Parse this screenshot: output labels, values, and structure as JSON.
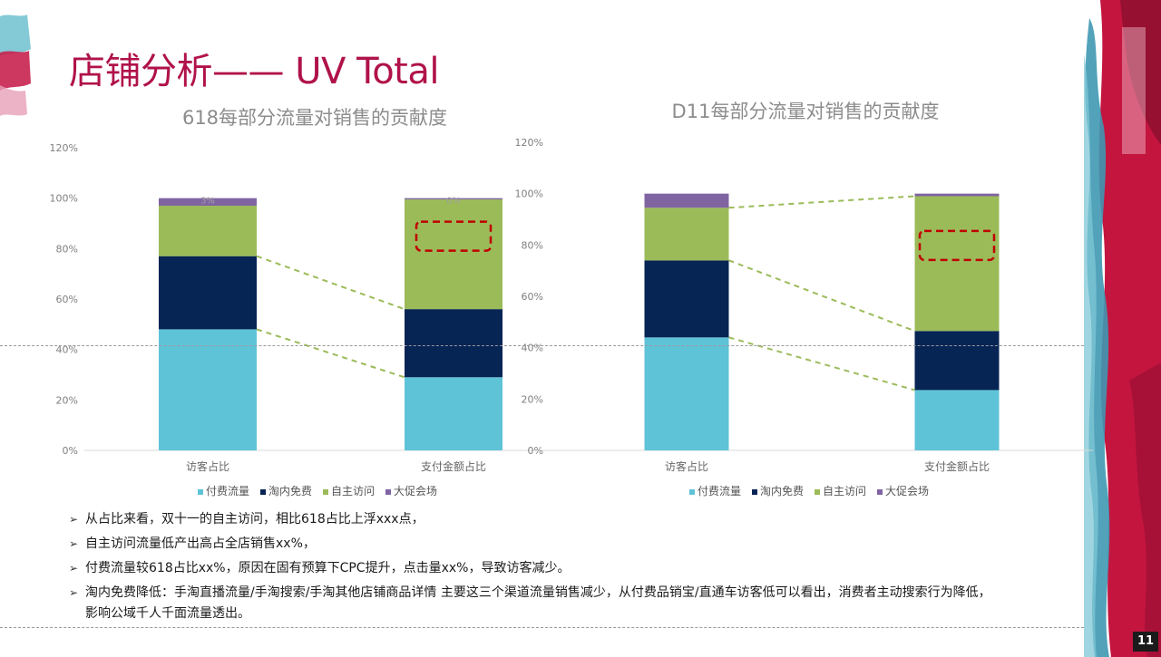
{
  "slide": {
    "title": "店铺分析—— UV Total",
    "page_number": "11"
  },
  "colors": {
    "title": "#b0124a",
    "paid": "#5fc3d8",
    "free": "#062454",
    "self": "#9bbb59",
    "promo": "#8064a2",
    "trend_line": "#9bbb59",
    "highlight": "#c00000"
  },
  "chart_data": [
    {
      "type": "bar",
      "stacked": true,
      "title": "618每部分流量对销售的贡献度",
      "categories": [
        "访客占比",
        "支付金额占比"
      ],
      "ylim": [
        0,
        1.2
      ],
      "yticks": [
        "0%",
        "20%",
        "40%",
        "60%",
        "80%",
        "100%",
        "120%"
      ],
      "series": [
        {
          "name": "付费流量",
          "values": [
            0.48,
            0.29
          ]
        },
        {
          "name": "淘内免费",
          "values": [
            0.29,
            0.27
          ]
        },
        {
          "name": "自主访问",
          "values": [
            0.2,
            0.435
          ]
        },
        {
          "name": "大促会场",
          "values": [
            0.03,
            0.005
          ]
        }
      ],
      "data_labels": [
        {
          "series": "大促会场",
          "category": "访客占比",
          "text": "3%"
        },
        {
          "series": "大促会场",
          "category": "支付金额占比",
          "text": "0%"
        }
      ],
      "legend_position": "bottom"
    },
    {
      "type": "bar",
      "stacked": true,
      "title": "D11每部分流量对销售的贡献度",
      "categories": [
        "访客占比",
        "支付金额占比"
      ],
      "ylim": [
        0,
        1.2
      ],
      "yticks": [
        "0%",
        "20%",
        "40%",
        "60%",
        "80%",
        "100%",
        "120%"
      ],
      "series": [
        {
          "name": "付费流量",
          "values": [
            0.44,
            0.235
          ]
        },
        {
          "name": "淘内免费",
          "values": [
            0.3,
            0.23
          ]
        },
        {
          "name": "自主访问",
          "values": [
            0.205,
            0.525
          ]
        },
        {
          "name": "大促会场",
          "values": [
            0.055,
            0.01
          ]
        }
      ],
      "data_labels": [],
      "legend_position": "bottom"
    }
  ],
  "bullets": [
    "从占比来看，双十一的自主访问，相比618占比上浮xxx点，",
    "自主访问流量低产出高占全店销售xx%，",
    "付费流量较618占比xx%，原因在固有预算下CPC提升，点击量xx%，导致访客减少。",
    "淘内免费降低：手淘直播流量/手淘搜索/手淘其他店铺商品详情 主要这三个渠道流量销售减少，从付费品销宝/直通车访客低可以看出，消费者主动搜索行为降低，影响公域千人千面流量透出。"
  ],
  "bullet_marker": "➢"
}
